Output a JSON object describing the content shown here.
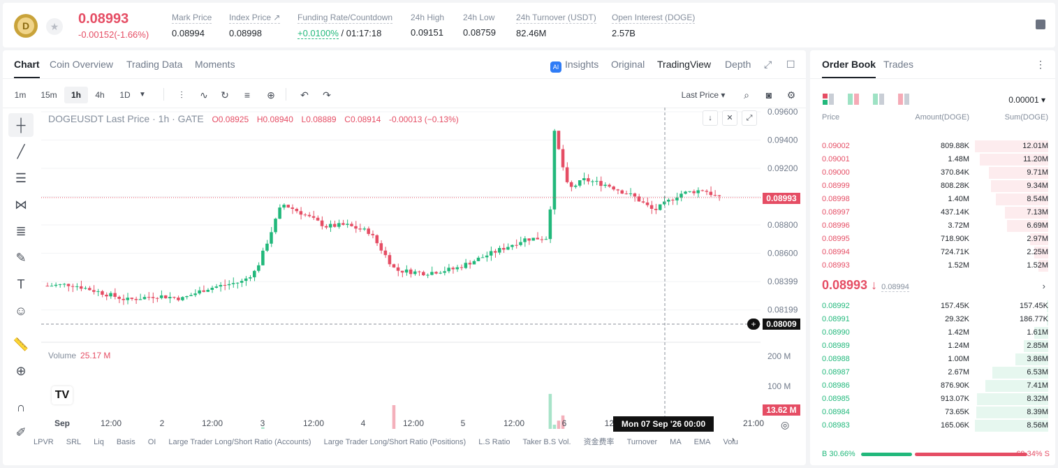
{
  "ticker": {
    "logo_letter": "D",
    "last_price": "0.08993",
    "change": "-0.00152(-1.66%)",
    "stats": [
      {
        "label": "Mark Price",
        "value": "0.08994"
      },
      {
        "label": "Index Price ↗",
        "value": "0.08998"
      },
      {
        "label": "Funding Rate/Countdown",
        "value": "+0.0100%",
        "value2": "/ 01:17:18"
      },
      {
        "label": "24h High",
        "value": "0.09151"
      },
      {
        "label": "24h Low",
        "value": "0.08759"
      },
      {
        "label": "24h Turnover (USDT)",
        "value": "82.46M"
      },
      {
        "label": "Open Interest (DOGE)",
        "value": "2.57B"
      }
    ]
  },
  "chart_tabs": [
    "Chart",
    "Coin Overview",
    "Trading Data",
    "Moments"
  ],
  "view_tabs": {
    "insights": "Insights",
    "original": "Original",
    "tradingview": "TradingView",
    "depth": "Depth",
    "ai_badge": "AI"
  },
  "intervals": [
    "1m",
    "15m",
    "1h",
    "4h",
    "1D"
  ],
  "price_type": "Last Price ▾",
  "legend": {
    "symbol": "DOGEUSDT Last Price · 1h · GATE",
    "o": "O0.08925",
    "h": "H0.08940",
    "l": "L0.08889",
    "c": "C0.08914",
    "chg": "-0.00013 (−0.13%)"
  },
  "volume_legend": {
    "label": "Volume",
    "value": "25.17 M"
  },
  "price_axis": [
    "0.09600",
    "0.09400",
    "0.09200",
    "0.09000",
    "0.08800",
    "0.08600",
    "0.08399",
    "0.08199"
  ],
  "volume_axis": [
    "200 M",
    "100 M"
  ],
  "time_axis": [
    "Sep",
    "12:00",
    "2",
    "12:00",
    "3",
    "12:00",
    "4",
    "12:00",
    "5",
    "12:00",
    "6",
    "12:",
    "21:00"
  ],
  "tags": {
    "last": "0.08993",
    "cross": "0.08009",
    "volume": "13.62 M"
  },
  "crosshair_time": "Mon 07 Sep '26   00:00",
  "indicators": [
    "LPVR",
    "SRL",
    "Liq",
    "Basis",
    "OI",
    "Large Trader Long/Short Ratio (Accounts)",
    "Large Trader Long/Short Ratio (Positions)",
    "L.S Ratio",
    "Taker B.S Vol.",
    "资金费率",
    "Turnover",
    "MA",
    "EMA",
    "Volu"
  ],
  "colors": {
    "up": "#21b87b",
    "down": "#e54d64"
  },
  "chart_data": {
    "type": "candlestick",
    "interval": "1h",
    "ohlc_range": [
      0.0802,
      0.096
    ],
    "visible_candles": 160,
    "last_ohlc": {
      "open": 0.08925,
      "high": 0.0894,
      "low": 0.08889,
      "close": 0.08914
    },
    "last_price": 0.08993,
    "volume_last": "25.17 M"
  },
  "orderbook": {
    "tabs": [
      "Order Book",
      "Trades"
    ],
    "precision": "0.00001",
    "headers": {
      "price": "Price",
      "amount": "Amount(DOGE)",
      "sum": "Sum(DOGE)"
    },
    "asks": [
      {
        "price": "0.09002",
        "amount": "809.88K",
        "sum": "12.01M",
        "depth": 1.0
      },
      {
        "price": "0.09001",
        "amount": "1.48M",
        "sum": "11.20M",
        "depth": 0.93
      },
      {
        "price": "0.09000",
        "amount": "370.84K",
        "sum": "9.71M",
        "depth": 0.81
      },
      {
        "price": "0.08999",
        "amount": "808.28K",
        "sum": "9.34M",
        "depth": 0.78
      },
      {
        "price": "0.08998",
        "amount": "1.40M",
        "sum": "8.54M",
        "depth": 0.71
      },
      {
        "price": "0.08997",
        "amount": "437.14K",
        "sum": "7.13M",
        "depth": 0.59
      },
      {
        "price": "0.08996",
        "amount": "3.72M",
        "sum": "6.69M",
        "depth": 0.56
      },
      {
        "price": "0.08995",
        "amount": "718.90K",
        "sum": "2.97M",
        "depth": 0.25
      },
      {
        "price": "0.08994",
        "amount": "724.71K",
        "sum": "2.25M",
        "depth": 0.19
      },
      {
        "price": "0.08993",
        "amount": "1.52M",
        "sum": "1.52M",
        "depth": 0.13
      }
    ],
    "mid_price": "0.08993 ↓",
    "mark_price": "0.08994",
    "bids": [
      {
        "price": "0.08992",
        "amount": "157.45K",
        "sum": "157.45K",
        "depth": 0.02
      },
      {
        "price": "0.08991",
        "amount": "29.32K",
        "sum": "186.77K",
        "depth": 0.02
      },
      {
        "price": "0.08990",
        "amount": "1.42M",
        "sum": "1.61M",
        "depth": 0.19
      },
      {
        "price": "0.08989",
        "amount": "1.24M",
        "sum": "2.85M",
        "depth": 0.33
      },
      {
        "price": "0.08988",
        "amount": "1.00M",
        "sum": "3.86M",
        "depth": 0.45
      },
      {
        "price": "0.08987",
        "amount": "2.67M",
        "sum": "6.53M",
        "depth": 0.76
      },
      {
        "price": "0.08986",
        "amount": "876.90K",
        "sum": "7.41M",
        "depth": 0.86
      },
      {
        "price": "0.08985",
        "amount": "913.07K",
        "sum": "8.32M",
        "depth": 0.97
      },
      {
        "price": "0.08984",
        "amount": "73.65K",
        "sum": "8.39M",
        "depth": 0.98
      },
      {
        "price": "0.08983",
        "amount": "165.06K",
        "sum": "8.56M",
        "depth": 1.0
      }
    ],
    "buy_ratio": "30.66%",
    "sell_ratio": "69.34%",
    "buy_label": "B",
    "sell_label": "S",
    "buy_fraction": 0.3066
  }
}
